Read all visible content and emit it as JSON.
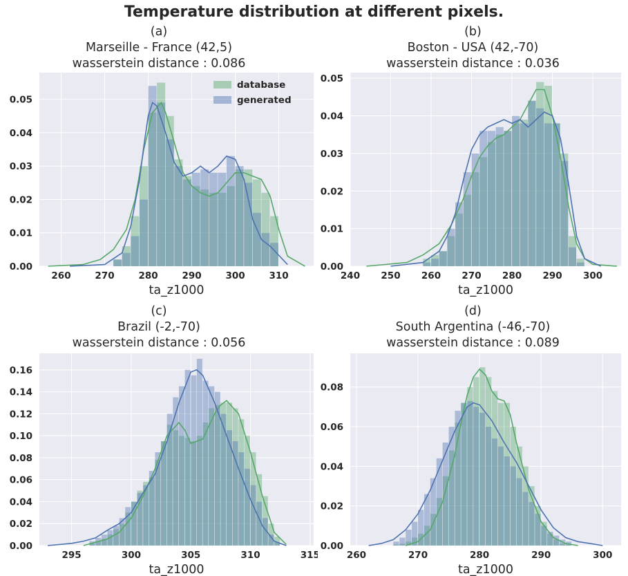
{
  "figure_title": "Temperature distribution at different pixels.",
  "colors": {
    "database": "#55A868",
    "generated": "#4C72B0",
    "background": "#EAEAF2",
    "grid": "#FFFFFF"
  },
  "legend": {
    "database": "database",
    "generated": "generated"
  },
  "chart_data": [
    {
      "type": "histogram+kde",
      "label": "(a)",
      "title": "Marseille - France (42,5)",
      "subtitle": "wasserstein distance : 0.086",
      "xlabel": "ta_z1000",
      "xlim": [
        255,
        318
      ],
      "ylim": [
        0,
        0.058
      ],
      "xticks": [
        "260",
        "270",
        "280",
        "290",
        "300",
        "310"
      ],
      "yticks": [
        "0.00",
        "0.01",
        "0.02",
        "0.03",
        "0.04",
        "0.05"
      ],
      "grid": true,
      "legend_position": "top-right",
      "bin_edges": [
        272,
        274,
        276,
        278,
        280,
        282,
        284,
        286,
        288,
        290,
        292,
        294,
        296,
        298,
        300,
        302,
        304,
        306,
        308,
        310
      ],
      "series": [
        {
          "name": "database",
          "hist": [
            0.002,
            0.006,
            0.015,
            0.03,
            0.046,
            0.055,
            0.045,
            0.032,
            0.027,
            0.024,
            0.023,
            0.022,
            0.022,
            0.024,
            0.029,
            0.029,
            0.026,
            0.022,
            0.015
          ],
          "kde_x": [
            257,
            265,
            269,
            272,
            275,
            277,
            279,
            281,
            283,
            284,
            286,
            288,
            290,
            292,
            294,
            296,
            298,
            300,
            302,
            304,
            306,
            308,
            310,
            312,
            316
          ],
          "kde_y": [
            0,
            0.0005,
            0.002,
            0.005,
            0.011,
            0.02,
            0.035,
            0.046,
            0.049,
            0.046,
            0.037,
            0.028,
            0.024,
            0.022,
            0.021,
            0.022,
            0.025,
            0.028,
            0.028,
            0.027,
            0.026,
            0.021,
            0.011,
            0.003,
            0
          ]
        },
        {
          "name": "generated",
          "hist": [
            0.002,
            0.004,
            0.009,
            0.02,
            0.054,
            0.049,
            0.038,
            0.03,
            0.026,
            0.028,
            0.029,
            0.028,
            0.028,
            0.033,
            0.03,
            0.025,
            0.016,
            0.01,
            0.007
          ],
          "kde_x": [
            262,
            270,
            274,
            276,
            278,
            279,
            280,
            281,
            282,
            284,
            286,
            288,
            290,
            292,
            294,
            296,
            298,
            300,
            302,
            304,
            306,
            308,
            312
          ],
          "kde_y": [
            0,
            0.0005,
            0.004,
            0.012,
            0.026,
            0.036,
            0.045,
            0.049,
            0.048,
            0.04,
            0.031,
            0.027,
            0.028,
            0.03,
            0.028,
            0.03,
            0.033,
            0.032,
            0.026,
            0.014,
            0.008,
            0.006,
            0.0005
          ]
        }
      ]
    },
    {
      "type": "histogram+kde",
      "label": "(b)",
      "title": "Boston - USA (42,-70)",
      "subtitle": "wasserstein distance : 0.036",
      "xlabel": "ta_z1000",
      "xlim": [
        240,
        307
      ],
      "ylim": [
        0,
        0.0515
      ],
      "xticks": [
        "240",
        "250",
        "260",
        "270",
        "280",
        "290",
        "300"
      ],
      "yticks": [
        "0.00",
        "0.01",
        "0.02",
        "0.03",
        "0.04",
        "0.05"
      ],
      "grid": true,
      "legend_position": "",
      "bin_edges": [
        258,
        260,
        262,
        264,
        266,
        268,
        270,
        272,
        274,
        276,
        278,
        280,
        282,
        284,
        286,
        288,
        290,
        292,
        294,
        296,
        298
      ],
      "series": [
        {
          "name": "database",
          "hist": [
            0.002,
            0.003,
            0.004,
            0.008,
            0.014,
            0.019,
            0.025,
            0.029,
            0.033,
            0.035,
            0.036,
            0.038,
            0.039,
            0.044,
            0.049,
            0.048,
            0.038,
            0.03,
            0.008,
            0.002
          ],
          "kde_x": [
            244,
            254,
            258,
            262,
            265,
            268,
            270,
            272,
            274,
            276,
            278,
            280,
            282,
            284,
            286,
            288,
            290,
            292,
            294,
            296,
            298,
            300,
            306
          ],
          "kde_y": [
            0,
            0.001,
            0.003,
            0.006,
            0.011,
            0.018,
            0.024,
            0.029,
            0.032,
            0.034,
            0.035,
            0.037,
            0.039,
            0.043,
            0.047,
            0.047,
            0.04,
            0.029,
            0.016,
            0.006,
            0.002,
            0.0005,
            0
          ]
        },
        {
          "name": "generated",
          "hist": [
            0.001,
            0.002,
            0.004,
            0.01,
            0.017,
            0.025,
            0.03,
            0.036,
            0.036,
            0.037,
            0.036,
            0.04,
            0.038,
            0.044,
            0.042,
            0.038,
            0.038,
            0.028,
            0.005,
            0.001
          ],
          "kde_x": [
            250,
            258,
            262,
            264,
            266,
            268,
            270,
            272,
            274,
            276,
            278,
            280,
            282,
            284,
            286,
            288,
            290,
            292,
            294,
            296,
            298,
            302
          ],
          "kde_y": [
            0,
            0.001,
            0.004,
            0.008,
            0.014,
            0.023,
            0.031,
            0.035,
            0.037,
            0.038,
            0.039,
            0.038,
            0.039,
            0.037,
            0.039,
            0.041,
            0.04,
            0.034,
            0.022,
            0.008,
            0.002,
            0
          ]
        }
      ]
    },
    {
      "type": "histogram+kde",
      "label": "(c)",
      "title": "Brazil (-2,-70)",
      "subtitle": "wasserstein distance : 0.056",
      "xlabel": "ta_z1000",
      "xlim": [
        292.3,
        315.3
      ],
      "ylim": [
        0,
        0.175
      ],
      "xticks": [
        "295",
        "300",
        "305",
        "310",
        "315"
      ],
      "yticks": [
        "0.00",
        "0.02",
        "0.04",
        "0.06",
        "0.08",
        "0.10",
        "0.12",
        "0.14",
        "0.16"
      ],
      "grid": true,
      "legend_position": "",
      "bin_edges": [
        296.5,
        297,
        297.5,
        298,
        298.5,
        299,
        299.5,
        300,
        300.5,
        301,
        301.5,
        302,
        302.5,
        303,
        303.5,
        304,
        304.5,
        305,
        305.5,
        306,
        306.5,
        307,
        307.5,
        308,
        308.5,
        309,
        309.5,
        310,
        310.5,
        311,
        311.5,
        312,
        312.5
      ],
      "series": [
        {
          "name": "database",
          "hist": [
            0.002,
            0.004,
            0.006,
            0.01,
            0.015,
            0.02,
            0.03,
            0.04,
            0.05,
            0.058,
            0.062,
            0.078,
            0.095,
            0.11,
            0.105,
            0.1,
            0.098,
            0.095,
            0.1,
            0.112,
            0.125,
            0.128,
            0.13,
            0.13,
            0.125,
            0.115,
            0.1,
            0.085,
            0.065,
            0.045,
            0.02,
            0.008
          ],
          "kde_x": [
            296,
            298,
            299,
            300,
            301,
            302,
            303,
            304,
            304.5,
            305,
            306,
            307,
            307.5,
            308,
            309,
            310,
            311,
            312,
            313
          ],
          "kde_y": [
            0,
            0.006,
            0.012,
            0.025,
            0.045,
            0.07,
            0.1,
            0.112,
            0.105,
            0.093,
            0.097,
            0.12,
            0.128,
            0.132,
            0.12,
            0.085,
            0.045,
            0.012,
            0.001
          ]
        },
        {
          "name": "generated",
          "hist": [
            0.004,
            0.007,
            0.01,
            0.014,
            0.018,
            0.025,
            0.035,
            0.04,
            0.048,
            0.055,
            0.068,
            0.085,
            0.095,
            0.12,
            0.135,
            0.145,
            0.16,
            0.155,
            0.17,
            0.15,
            0.145,
            0.14,
            0.12,
            0.105,
            0.095,
            0.085,
            0.07,
            0.055,
            0.04,
            0.025,
            0.01,
            0.003
          ],
          "kde_x": [
            293,
            295,
            296,
            297,
            298,
            299,
            300,
            301,
            302,
            303,
            304,
            305,
            305.5,
            306,
            307,
            308,
            309,
            310,
            311,
            312,
            313
          ],
          "kde_y": [
            0,
            0.002,
            0.004,
            0.007,
            0.014,
            0.02,
            0.03,
            0.048,
            0.065,
            0.095,
            0.13,
            0.158,
            0.16,
            0.155,
            0.13,
            0.1,
            0.07,
            0.042,
            0.018,
            0.004,
            0
          ]
        }
      ]
    },
    {
      "type": "histogram+kde",
      "label": "(d)",
      "title": "South Argentina (-46,-70)",
      "subtitle": "wasserstein distance : 0.089",
      "xlabel": "ta_z1000",
      "xlim": [
        259,
        303
      ],
      "ylim": [
        0,
        0.097
      ],
      "xticks": [
        "260",
        "270",
        "280",
        "290",
        "300"
      ],
      "yticks": [
        "0.00",
        "0.02",
        "0.04",
        "0.06",
        "0.08"
      ],
      "grid": true,
      "legend_position": "",
      "bin_edges": [
        266,
        267,
        268,
        269,
        270,
        271,
        272,
        273,
        274,
        275,
        276,
        277,
        278,
        279,
        280,
        281,
        282,
        283,
        284,
        285,
        286,
        287,
        288,
        289,
        290,
        291,
        292,
        293,
        294,
        295
      ],
      "series": [
        {
          "name": "database",
          "hist": [
            0.0005,
            0.001,
            0.002,
            0.004,
            0.006,
            0.01,
            0.016,
            0.024,
            0.035,
            0.048,
            0.062,
            0.072,
            0.08,
            0.085,
            0.09,
            0.085,
            0.078,
            0.072,
            0.072,
            0.06,
            0.05,
            0.04,
            0.03,
            0.02,
            0.012,
            0.006,
            0.003,
            0.001,
            0.0005
          ],
          "kde_x": [
            268,
            270,
            272,
            274,
            276,
            277,
            278,
            279,
            280,
            281,
            282,
            283,
            284,
            285,
            286,
            288,
            290,
            292,
            294,
            296
          ],
          "kde_y": [
            0,
            0.002,
            0.008,
            0.022,
            0.046,
            0.062,
            0.076,
            0.085,
            0.089,
            0.086,
            0.078,
            0.074,
            0.073,
            0.066,
            0.052,
            0.028,
            0.012,
            0.004,
            0.001,
            0
          ]
        },
        {
          "name": "generated",
          "hist": [
            0.002,
            0.004,
            0.008,
            0.012,
            0.018,
            0.026,
            0.034,
            0.044,
            0.052,
            0.06,
            0.068,
            0.072,
            0.073,
            0.07,
            0.067,
            0.06,
            0.054,
            0.05,
            0.045,
            0.04,
            0.034,
            0.027,
            0.022,
            0.016,
            0.01,
            0.007,
            0.005,
            0.003,
            0.002
          ],
          "kde_x": [
            262,
            264,
            266,
            268,
            270,
            272,
            274,
            276,
            278,
            279,
            280,
            282,
            284,
            286,
            288,
            290,
            292,
            294,
            296,
            298,
            300
          ],
          "kde_y": [
            0,
            0.001,
            0.003,
            0.008,
            0.016,
            0.028,
            0.043,
            0.058,
            0.07,
            0.072,
            0.071,
            0.063,
            0.052,
            0.042,
            0.03,
            0.018,
            0.009,
            0.004,
            0.002,
            0.001,
            0
          ]
        }
      ]
    }
  ]
}
